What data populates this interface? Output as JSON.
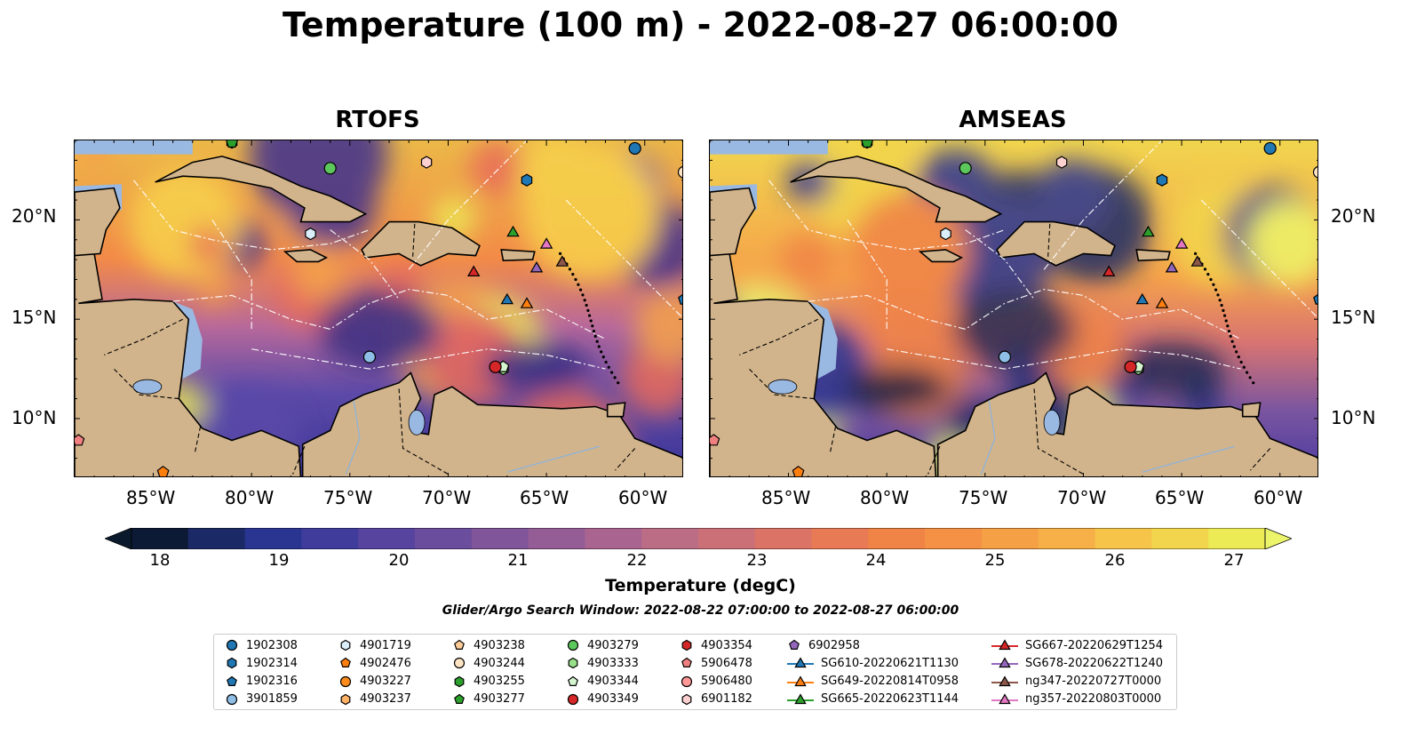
{
  "title": "Temperature (100 m) - 2022-08-27 06:00:00",
  "panels": [
    {
      "name": "RTOFS",
      "theme": "rtofs"
    },
    {
      "name": "AMSEAS",
      "theme": "amseas"
    }
  ],
  "axes": {
    "lon_ticks": [
      "85°W",
      "80°W",
      "75°W",
      "70°W",
      "65°W",
      "60°W"
    ],
    "lat_ticks": [
      "20°N",
      "15°N",
      "10°N"
    ],
    "lon_range": [
      -89,
      -58
    ],
    "lat_range": [
      7,
      24
    ]
  },
  "colorbar": {
    "label": "Temperature (degC)",
    "ticks": [
      "18",
      "19",
      "20",
      "21",
      "22",
      "23",
      "24",
      "25",
      "26",
      "27"
    ],
    "colors": [
      "#0d1a35",
      "#1b2a66",
      "#2a3592",
      "#3f3c9c",
      "#56449f",
      "#6b4d9d",
      "#80559a",
      "#955d95",
      "#a9658f",
      "#bc6d86",
      "#cc7078",
      "#db7466",
      "#e87b55",
      "#f08446",
      "#f59145",
      "#f6a046",
      "#f7b048",
      "#f7c44a",
      "#f2d54c",
      "#ecea55"
    ],
    "under": "#0a1a2c",
    "over": "#ecf56a"
  },
  "search_window": "Glider/Argo Search Window: 2022-08-22 07:00:00 to 2022-08-27 06:00:00",
  "legend": [
    {
      "label": "1902308",
      "marker": "circle",
      "color": "#1f77b4"
    },
    {
      "label": "1902314",
      "marker": "hexagon",
      "color": "#1f77b4"
    },
    {
      "label": "1902316",
      "marker": "pentagon",
      "color": "#1f77b4"
    },
    {
      "label": "3901859",
      "marker": "circle",
      "color": "#8fbfe6"
    },
    {
      "label": "4901719",
      "marker": "hexagon",
      "color": "#dbeefb"
    },
    {
      "label": "4902476",
      "marker": "pentagon",
      "color": "#ff7f0e"
    },
    {
      "label": "4903227",
      "marker": "circle",
      "color": "#ff8c1a"
    },
    {
      "label": "4903237",
      "marker": "hexagon",
      "color": "#ffb266"
    },
    {
      "label": "4903238",
      "marker": "pentagon",
      "color": "#ffcc99"
    },
    {
      "label": "4903244",
      "marker": "circle",
      "color": "#ffe4c4"
    },
    {
      "label": "4903255",
      "marker": "hexagon",
      "color": "#2ca02c"
    },
    {
      "label": "4903277",
      "marker": "pentagon",
      "color": "#2ca02c"
    },
    {
      "label": "4903279",
      "marker": "circle",
      "color": "#5cc85c"
    },
    {
      "label": "4903333",
      "marker": "hexagon",
      "color": "#98df8a"
    },
    {
      "label": "4903344",
      "marker": "pentagon",
      "color": "#d5f5d0"
    },
    {
      "label": "4903349",
      "marker": "circle",
      "color": "#d62728"
    },
    {
      "label": "4903354",
      "marker": "hexagon",
      "color": "#d62728"
    },
    {
      "label": "5906478",
      "marker": "pentagon",
      "color": "#f08080"
    },
    {
      "label": "5906480",
      "marker": "circle",
      "color": "#ff9896"
    },
    {
      "label": "6901182",
      "marker": "hexagon",
      "color": "#ffd0d0"
    },
    {
      "label": "6902958",
      "marker": "pentagon",
      "color": "#9467bd"
    },
    {
      "label": "SG610-20220621T1130",
      "marker": "line-triangle",
      "color": "#1f77b4"
    },
    {
      "label": "SG649-20220814T0958",
      "marker": "line-triangle",
      "color": "#ff7f0e"
    },
    {
      "label": "SG665-20220623T1144",
      "marker": "line-triangle",
      "color": "#2ca02c"
    },
    {
      "label": "SG667-20220629T1254",
      "marker": "line-triangle",
      "color": "#d62728"
    },
    {
      "label": "SG678-20220622T1240",
      "marker": "line-triangle",
      "color": "#9467bd"
    },
    {
      "label": "ng347-20220727T0000",
      "marker": "line-triangle",
      "color": "#8c564b"
    },
    {
      "label": "ng357-20220803T0000",
      "marker": "line-triangle",
      "color": "#e377c2"
    }
  ],
  "platforms": [
    {
      "ref": "1902308",
      "lon": -60.5,
      "lat": 23.6
    },
    {
      "ref": "1902314",
      "lon": -66.0,
      "lat": 22.0
    },
    {
      "ref": "1902316",
      "lon": -58.0,
      "lat": 16.0
    },
    {
      "ref": "3901859",
      "lon": -74.0,
      "lat": 13.1
    },
    {
      "ref": "4901719",
      "lon": -77.0,
      "lat": 19.3
    },
    {
      "ref": "4902476",
      "lon": -84.5,
      "lat": 7.3
    },
    {
      "ref": "4903244",
      "lon": -58.0,
      "lat": 22.4
    },
    {
      "ref": "4903255",
      "lon": -81.0,
      "lat": 23.9
    },
    {
      "ref": "4903277",
      "lon": -81.0,
      "lat": 23.9
    },
    {
      "ref": "4903279",
      "lon": -76.0,
      "lat": 22.6
    },
    {
      "ref": "4903333",
      "lon": -67.2,
      "lat": 12.5
    },
    {
      "ref": "4903344",
      "lon": -67.2,
      "lat": 12.6
    },
    {
      "ref": "4903349",
      "lon": -67.6,
      "lat": 12.6
    },
    {
      "ref": "5906478",
      "lon": -88.8,
      "lat": 8.9
    },
    {
      "ref": "6901182",
      "lon": -71.1,
      "lat": 22.9
    },
    {
      "ref": "SG610-20220621T1130",
      "lon": -67.0,
      "lat": 16.0
    },
    {
      "ref": "SG649-20220814T0958",
      "lon": -66.0,
      "lat": 15.8
    },
    {
      "ref": "SG665-20220623T1144",
      "lon": -66.7,
      "lat": 19.4
    },
    {
      "ref": "SG667-20220629T1254",
      "lon": -68.7,
      "lat": 17.4
    },
    {
      "ref": "SG678-20220622T1240",
      "lon": -65.5,
      "lat": 17.6
    },
    {
      "ref": "ng347-20220727T0000",
      "lon": -64.2,
      "lat": 17.9
    },
    {
      "ref": "ng357-20220803T0000",
      "lon": -65.0,
      "lat": 18.8
    }
  ]
}
